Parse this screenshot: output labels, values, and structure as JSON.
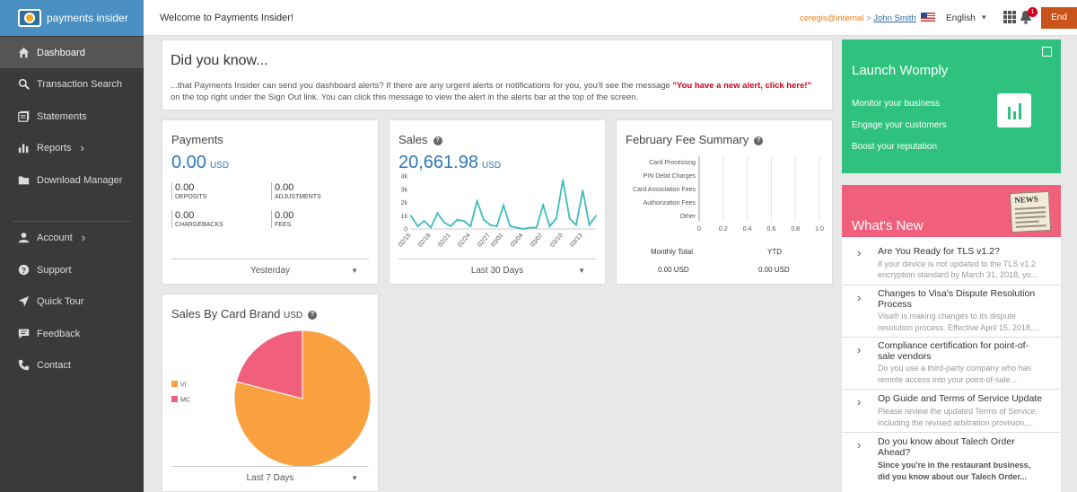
{
  "brand": {
    "logo_text": "payments insider"
  },
  "sidebar": {
    "items": [
      {
        "label": "Dashboard"
      },
      {
        "label": "Transaction Search"
      },
      {
        "label": "Statements"
      },
      {
        "label": "Reports"
      },
      {
        "label": "Download Manager"
      },
      {
        "label": "Account"
      },
      {
        "label": "Support"
      },
      {
        "label": "Quick Tour"
      },
      {
        "label": "Feedback"
      },
      {
        "label": "Contact"
      }
    ]
  },
  "header": {
    "welcome": "Welcome to Payments Insider!",
    "org": "ceregis@internal",
    "separator": " > ",
    "user": "John Smith",
    "language": "English",
    "notification_count": "1",
    "end_button": "End"
  },
  "did_you_know": {
    "title": "Did you know...",
    "text_before": "...that Payments Insider can send you dashboard alerts? If there are any urgent alerts or notifications for you, you'll see the message ",
    "highlight": "\"You have a new alert, click here!\"",
    "text_after": " on the top right under the Sign Out link. You can click this message to view the alert in the alerts bar at the top of the screen."
  },
  "payments": {
    "title": "Payments",
    "amount": "0.00",
    "currency": "USD",
    "deposits_value": "0.00",
    "deposits_label": "DEPOSITS",
    "adjustments_value": "0.00",
    "adjustments_label": "ADJUSTMENTS",
    "chargebacks_value": "0.00",
    "chargebacks_label": "CHARGEBACKS",
    "fees_value": "0.00",
    "fees_label": "FEES",
    "period": "Yesterday"
  },
  "sales": {
    "title": "Sales",
    "amount": "20,661.98",
    "currency": "USD",
    "period": "Last 30 Days"
  },
  "fee_summary": {
    "title": "February Fee Summary",
    "monthly_total_label": "Monthly Total",
    "ytd_label": "YTD",
    "monthly_total_value": "0.00 USD",
    "ytd_value": "0.00 USD"
  },
  "card_brand": {
    "title": "Sales By Card Brand",
    "currency": "USD",
    "period": "Last 7 Days"
  },
  "womply": {
    "title": "Launch Womply",
    "lines": [
      "Monitor your business",
      "Engage your customers",
      "Boost your reputation"
    ]
  },
  "whats_new": {
    "title": "What's New",
    "news_label": "NEWS",
    "items": [
      {
        "title": "Are You Ready for TLS v1.2?",
        "desc1": "If your device is not updated to the TLS v1.2",
        "desc2": "encryption standard by March 31, 2018, yo..."
      },
      {
        "title1": "Changes to Visa's Dispute Resolution",
        "title2": "Process",
        "desc1": "Visa® is making changes to its dispute",
        "desc2": "resolution process. Effective April 15, 2018,..."
      },
      {
        "title1": "Compliance certification for point-of-",
        "title2": "sale vendors",
        "desc1": "Do you use a third-party company who has",
        "desc2": "remote access into your point-of-sale..."
      },
      {
        "title": "Op Guide and Terms of Service Update",
        "desc1": "Please review the updated Terms of Service,",
        "desc2": "including the revised arbitration provision,..."
      },
      {
        "title1": "Do you know about Talech Order",
        "title2": "Ahead?",
        "desc1": "Since you're in the restaurant business,",
        "desc2": "did you know about our Talech Order..."
      }
    ]
  },
  "chart_data": [
    {
      "type": "line",
      "title": "Sales",
      "x": [
        "02/15",
        "02/16",
        "02/17",
        "02/18",
        "02/19",
        "02/20",
        "02/21",
        "02/22",
        "02/23",
        "02/24",
        "02/25",
        "02/26",
        "02/27",
        "02/28",
        "03/01",
        "03/02",
        "03/03",
        "03/04",
        "03/05",
        "03/06",
        "03/07",
        "03/08",
        "03/09",
        "03/10",
        "03/11",
        "03/12",
        "03/13",
        "03/14",
        "03/15"
      ],
      "x_tick_labels": [
        "02/15",
        "02/18",
        "02/21",
        "02/24",
        "02/27",
        "03/01",
        "03/04",
        "03/07",
        "03/10",
        "03/13"
      ],
      "values": [
        1000,
        200,
        600,
        100,
        1200,
        500,
        200,
        700,
        600,
        200,
        2100,
        700,
        300,
        200,
        1800,
        200,
        100,
        0,
        100,
        100,
        1800,
        200,
        800,
        3700,
        800,
        300,
        2900,
        300,
        1000
      ],
      "ylim": [
        0,
        4000
      ],
      "y_tick_labels": [
        "0",
        "1k",
        "2k",
        "3k",
        "4k"
      ],
      "grid": false,
      "color": "#3bbdbd"
    },
    {
      "type": "bar",
      "title": "February Fee Summary",
      "categories": [
        "Card Processing",
        "PIN Debit Charges",
        "Card Association Fees",
        "Authorization Fees",
        "Other"
      ],
      "values": [
        0,
        0,
        0,
        0,
        0
      ],
      "xlim": [
        0,
        1.0
      ],
      "x_tick_labels": [
        "0",
        "0.2",
        "0.4",
        "0.6",
        "0.8",
        "1.0"
      ],
      "grid": true
    },
    {
      "type": "pie",
      "title": "Sales By Card Brand",
      "categories": [
        "VI",
        "MC"
      ],
      "values": [
        79,
        21
      ],
      "colors": [
        "#f9a03f",
        "#f0607a"
      ],
      "legend": "left"
    }
  ]
}
